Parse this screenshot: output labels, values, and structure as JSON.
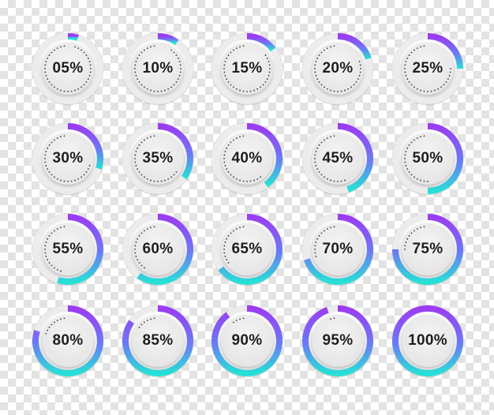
{
  "colors": {
    "arc_start": "#9b3cf2",
    "arc_mid": "#6a7cf5",
    "arc_end": "#27e0d6",
    "track": "#ececec",
    "face": "#e4e4e4",
    "dots": "#3a3a3a",
    "text": "#1e1e1e"
  },
  "indicators": [
    {
      "label": "05%",
      "value": 5
    },
    {
      "label": "10%",
      "value": 10
    },
    {
      "label": "15%",
      "value": 15
    },
    {
      "label": "20%",
      "value": 20
    },
    {
      "label": "25%",
      "value": 25
    },
    {
      "label": "30%",
      "value": 30
    },
    {
      "label": "35%",
      "value": 35
    },
    {
      "label": "40%",
      "value": 40
    },
    {
      "label": "45%",
      "value": 45
    },
    {
      "label": "50%",
      "value": 50
    },
    {
      "label": "55%",
      "value": 55
    },
    {
      "label": "60%",
      "value": 60
    },
    {
      "label": "65%",
      "value": 65
    },
    {
      "label": "70%",
      "value": 70
    },
    {
      "label": "75%",
      "value": 75
    },
    {
      "label": "80%",
      "value": 80
    },
    {
      "label": "85%",
      "value": 85
    },
    {
      "label": "90%",
      "value": 90
    },
    {
      "label": "95%",
      "value": 95
    },
    {
      "label": "100%",
      "value": 100
    }
  ]
}
